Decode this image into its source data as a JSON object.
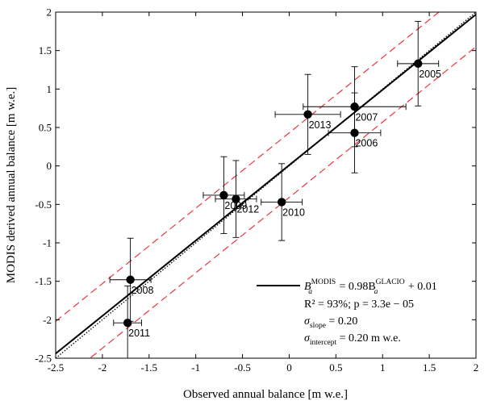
{
  "chart_data": {
    "type": "scatter",
    "xlabel": "Observed annual balance [m w.e.]",
    "ylabel": "MODIS derived annual balance [m w.e.]",
    "xlim": [
      -2.5,
      2
    ],
    "ylim": [
      -2.5,
      2
    ],
    "x_ticks": [
      -2.5,
      -2,
      -1.5,
      -1,
      -0.5,
      0,
      0.5,
      1,
      1.5,
      2
    ],
    "y_ticks": [
      -2.5,
      -2,
      -1.5,
      -1,
      -0.5,
      0,
      0.5,
      1,
      1.5,
      2
    ],
    "grid": false,
    "legend_position": "bottom-right",
    "points": [
      {
        "label": "2005",
        "x": 1.38,
        "y": 1.33,
        "xerr": 0.22,
        "yerr": 0.55
      },
      {
        "label": "2006",
        "x": 0.7,
        "y": 0.43,
        "xerr": 0.28,
        "yerr": 0.52
      },
      {
        "label": "2007",
        "x": 0.7,
        "y": 0.77,
        "xerr": 0.55,
        "yerr": 0.52
      },
      {
        "label": "2008",
        "x": -1.7,
        "y": -1.48,
        "xerr": 0.22,
        "yerr": 0.54
      },
      {
        "label": "2009",
        "x": -0.7,
        "y": -0.38,
        "xerr": 0.22,
        "yerr": 0.5
      },
      {
        "label": "2010",
        "x": -0.08,
        "y": -0.47,
        "xerr": 0.22,
        "yerr": 0.5
      },
      {
        "label": "2011",
        "x": -1.73,
        "y": -2.04,
        "xerr": 0.15,
        "yerr": 0.48
      },
      {
        "label": "2012",
        "x": -0.57,
        "y": -0.43,
        "xerr": 0.22,
        "yerr": 0.5
      },
      {
        "label": "2013",
        "x": 0.2,
        "y": 0.67,
        "xerr": 0.35,
        "yerr": 0.52
      }
    ],
    "fit": {
      "slope": 0.98,
      "intercept": 0.01
    },
    "identity_line": {
      "slope": 1,
      "intercept": 0
    },
    "confidence_band": {
      "lower_offset": -0.42,
      "upper_offset": 0.42
    },
    "colors": {
      "fit": "#000000",
      "identity": "#000000",
      "band": "#e8383d",
      "points": "#000000"
    },
    "legend": {
      "line1_lhs": "B",
      "line1_sub": "a",
      "line1_sup": "MODIS",
      "line1_mid": " = 0.98B",
      "line1_sub2": "a",
      "line1_sup2": "GLACIO",
      "line1_end": " + 0.01",
      "line2": "R² = 93%; p = 3.3e − 05",
      "line3_sym": "σ",
      "line3_sub": "slope",
      "line3_val": " = 0.20",
      "line4_sym": "σ",
      "line4_sub": "intercept",
      "line4_val": " = 0.20 m w.e."
    }
  }
}
